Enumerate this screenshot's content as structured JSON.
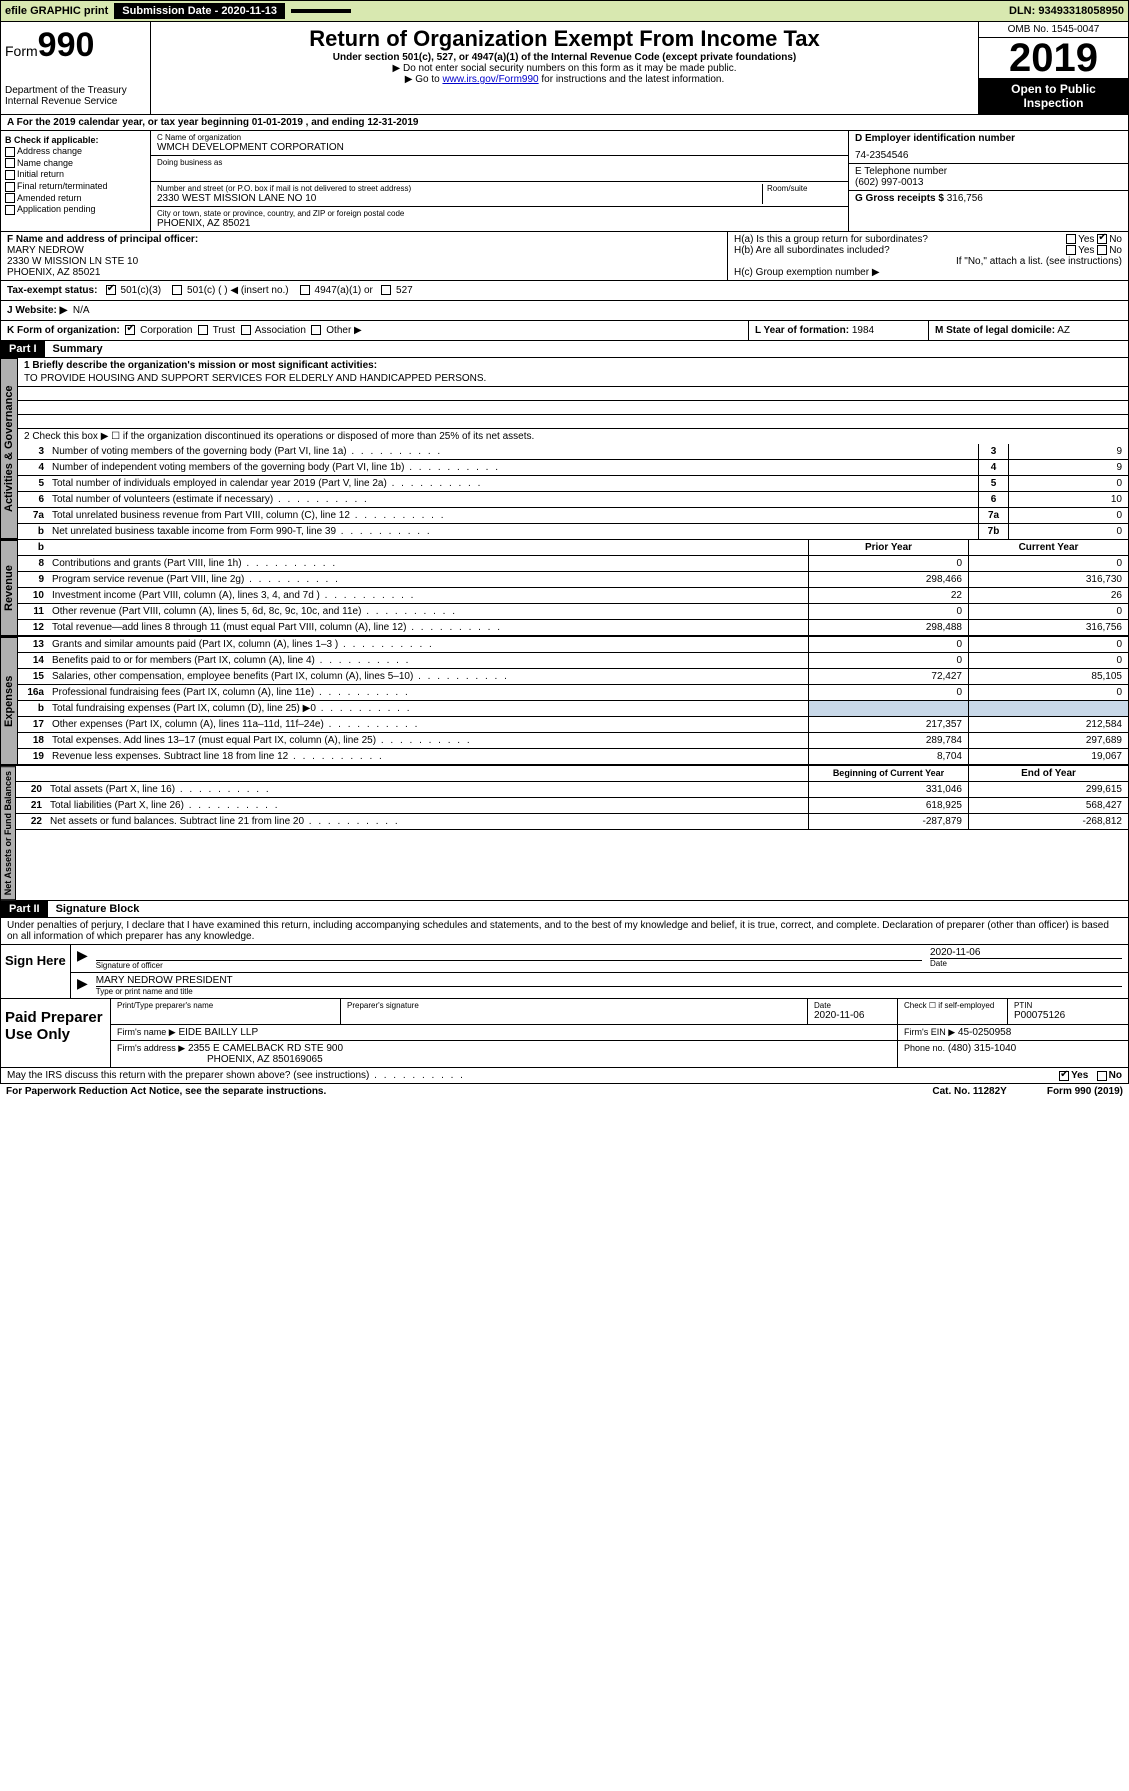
{
  "topbar": {
    "efile": "efile GRAPHIC print",
    "submission_label": "Submission Date - 2020-11-13",
    "dln": "DLN: 93493318058950"
  },
  "header": {
    "form_prefix": "Form",
    "form_num": "990",
    "dept": "Department of the Treasury",
    "irs": "Internal Revenue Service",
    "title": "Return of Organization Exempt From Income Tax",
    "subtitle": "Under section 501(c), 527, or 4947(a)(1) of the Internal Revenue Code (except private foundations)",
    "note1": "▶ Do not enter social security numbers on this form as it may be made public.",
    "note2_pre": "▶ Go to ",
    "note2_link": "www.irs.gov/Form990",
    "note2_post": " for instructions and the latest information.",
    "omb": "OMB No. 1545-0047",
    "year": "2019",
    "inspect1": "Open to Public",
    "inspect2": "Inspection"
  },
  "sectionA": "A For the 2019 calendar year, or tax year beginning 01-01-2019   , and ending 12-31-2019",
  "boxB": {
    "label": "B Check if applicable:",
    "opts": [
      "Address change",
      "Name change",
      "Initial return",
      "Final return/terminated",
      "Amended return",
      "Application pending"
    ]
  },
  "boxC": {
    "name_label": "C Name of organization",
    "name": "WMCH DEVELOPMENT CORPORATION",
    "dba_label": "Doing business as",
    "addr_label": "Number and street (or P.O. box if mail is not delivered to street address)",
    "addr": "2330 WEST MISSION LANE NO 10",
    "room_label": "Room/suite",
    "city_label": "City or town, state or province, country, and ZIP or foreign postal code",
    "city": "PHOENIX, AZ  85021"
  },
  "boxD": {
    "label": "D Employer identification number",
    "ein": "74-2354546"
  },
  "boxE": {
    "label": "E Telephone number",
    "phone": "(602) 997-0013"
  },
  "boxG": {
    "label": "G Gross receipts $",
    "val": "316,756"
  },
  "boxF": {
    "label": "F  Name and address of principal officer:",
    "name": "MARY NEDROW",
    "addr1": "2330 W MISSION LN STE 10",
    "addr2": "PHOENIX, AZ  85021"
  },
  "boxH": {
    "a_label": "H(a)  Is this a group return for subordinates?",
    "a_yes": "Yes",
    "a_no": "No",
    "b_label": "H(b)  Are all subordinates included?",
    "b_yes": "Yes",
    "b_no": "No",
    "b_note": "If \"No,\" attach a list. (see instructions)",
    "c_label": "H(c)  Group exemption number ▶"
  },
  "boxI": {
    "label": "Tax-exempt status:",
    "opt1": "501(c)(3)",
    "opt2": "501(c) (  ) ◀ (insert no.)",
    "opt3": "4947(a)(1) or",
    "opt4": "527"
  },
  "boxJ": {
    "label": "J   Website: ▶",
    "val": "N/A"
  },
  "boxK": {
    "label": "K Form of organization:",
    "opts": [
      "Corporation",
      "Trust",
      "Association",
      "Other ▶"
    ],
    "L_label": "L Year of formation:",
    "L_val": "1984",
    "M_label": "M State of legal domicile:",
    "M_val": "AZ"
  },
  "part1": {
    "header": "Part I",
    "title": "Summary",
    "line1_label": "1  Briefly describe the organization's mission or most significant activities:",
    "line1_text": "TO PROVIDE HOUSING AND SUPPORT SERVICES FOR ELDERLY AND HANDICAPPED PERSONS.",
    "line2": "2   Check this box ▶ ☐  if the organization discontinued its operations or disposed of more than 25% of its net assets.",
    "lines_single": [
      {
        "n": "3",
        "t": "Number of voting members of the governing body (Part VI, line 1a)",
        "box": "3",
        "v": "9"
      },
      {
        "n": "4",
        "t": "Number of independent voting members of the governing body (Part VI, line 1b)",
        "box": "4",
        "v": "9"
      },
      {
        "n": "5",
        "t": "Total number of individuals employed in calendar year 2019 (Part V, line 2a)",
        "box": "5",
        "v": "0"
      },
      {
        "n": "6",
        "t": "Total number of volunteers (estimate if necessary)",
        "box": "6",
        "v": "10"
      },
      {
        "n": "7a",
        "t": "Total unrelated business revenue from Part VIII, column (C), line 12",
        "box": "7a",
        "v": "0"
      },
      {
        "n": "b",
        "t": "Net unrelated business taxable income from Form 990-T, line 39",
        "box": "7b",
        "v": "0"
      }
    ],
    "col_head1": "Prior Year",
    "col_head2": "Current Year",
    "lines_rev": [
      {
        "n": "8",
        "t": "Contributions and grants (Part VIII, line 1h)",
        "c1": "0",
        "c2": "0"
      },
      {
        "n": "9",
        "t": "Program service revenue (Part VIII, line 2g)",
        "c1": "298,466",
        "c2": "316,730"
      },
      {
        "n": "10",
        "t": "Investment income (Part VIII, column (A), lines 3, 4, and 7d )",
        "c1": "22",
        "c2": "26"
      },
      {
        "n": "11",
        "t": "Other revenue (Part VIII, column (A), lines 5, 6d, 8c, 9c, 10c, and 11e)",
        "c1": "0",
        "c2": "0"
      },
      {
        "n": "12",
        "t": "Total revenue—add lines 8 through 11 (must equal Part VIII, column (A), line 12)",
        "c1": "298,488",
        "c2": "316,756"
      }
    ],
    "lines_exp": [
      {
        "n": "13",
        "t": "Grants and similar amounts paid (Part IX, column (A), lines 1–3 )",
        "c1": "0",
        "c2": "0"
      },
      {
        "n": "14",
        "t": "Benefits paid to or for members (Part IX, column (A), line 4)",
        "c1": "0",
        "c2": "0"
      },
      {
        "n": "15",
        "t": "Salaries, other compensation, employee benefits (Part IX, column (A), lines 5–10)",
        "c1": "72,427",
        "c2": "85,105"
      },
      {
        "n": "16a",
        "t": "Professional fundraising fees (Part IX, column (A), line 11e)",
        "c1": "0",
        "c2": "0"
      },
      {
        "n": "b",
        "t": "Total fundraising expenses (Part IX, column (D), line 25) ▶0",
        "c1": "",
        "c2": "",
        "shaded": true
      },
      {
        "n": "17",
        "t": "Other expenses (Part IX, column (A), lines 11a–11d, 11f–24e)",
        "c1": "217,357",
        "c2": "212,584"
      },
      {
        "n": "18",
        "t": "Total expenses. Add lines 13–17 (must equal Part IX, column (A), line 25)",
        "c1": "289,784",
        "c2": "297,689"
      },
      {
        "n": "19",
        "t": "Revenue less expenses. Subtract line 18 from line 12",
        "c1": "8,704",
        "c2": "19,067"
      }
    ],
    "col_head3": "Beginning of Current Year",
    "col_head4": "End of Year",
    "lines_net": [
      {
        "n": "20",
        "t": "Total assets (Part X, line 16)",
        "c1": "331,046",
        "c2": "299,615"
      },
      {
        "n": "21",
        "t": "Total liabilities (Part X, line 26)",
        "c1": "618,925",
        "c2": "568,427"
      },
      {
        "n": "22",
        "t": "Net assets or fund balances. Subtract line 21 from line 20",
        "c1": "-287,879",
        "c2": "-268,812"
      }
    ],
    "vtabs": {
      "gov": "Activities & Governance",
      "rev": "Revenue",
      "exp": "Expenses",
      "net": "Net Assets or Fund Balances"
    }
  },
  "part2": {
    "header": "Part II",
    "title": "Signature Block",
    "declaration": "Under penalties of perjury, I declare that I have examined this return, including accompanying schedules and statements, and to the best of my knowledge and belief, it is true, correct, and complete. Declaration of preparer (other than officer) is based on all information of which preparer has any knowledge.",
    "sign_here": "Sign Here",
    "sig_officer": "Signature of officer",
    "sig_date": "2020-11-06",
    "date_label": "Date",
    "officer_name": "MARY NEDROW  PRESIDENT",
    "type_label": "Type or print name and title",
    "paid_label": "Paid Preparer Use Only",
    "prep_name_label": "Print/Type preparer's name",
    "prep_sig_label": "Preparer's signature",
    "prep_date_label": "Date",
    "prep_date": "2020-11-06",
    "check_label": "Check ☐ if self-employed",
    "ptin_label": "PTIN",
    "ptin": "P00075126",
    "firm_name_label": "Firm's name     ▶",
    "firm_name": "EIDE BAILLY LLP",
    "firm_ein_label": "Firm's EIN ▶",
    "firm_ein": "45-0250958",
    "firm_addr_label": "Firm's address ▶",
    "firm_addr1": "2355 E CAMELBACK RD STE 900",
    "firm_addr2": "PHOENIX, AZ  850169065",
    "firm_phone_label": "Phone no.",
    "firm_phone": "(480) 315-1040",
    "discuss": "May the IRS discuss this return with the preparer shown above? (see instructions)",
    "discuss_yes": "Yes",
    "discuss_no": "No"
  },
  "footer": {
    "paperwork": "For Paperwork Reduction Act Notice, see the separate instructions.",
    "cat": "Cat. No. 11282Y",
    "form": "Form 990 (2019)"
  }
}
